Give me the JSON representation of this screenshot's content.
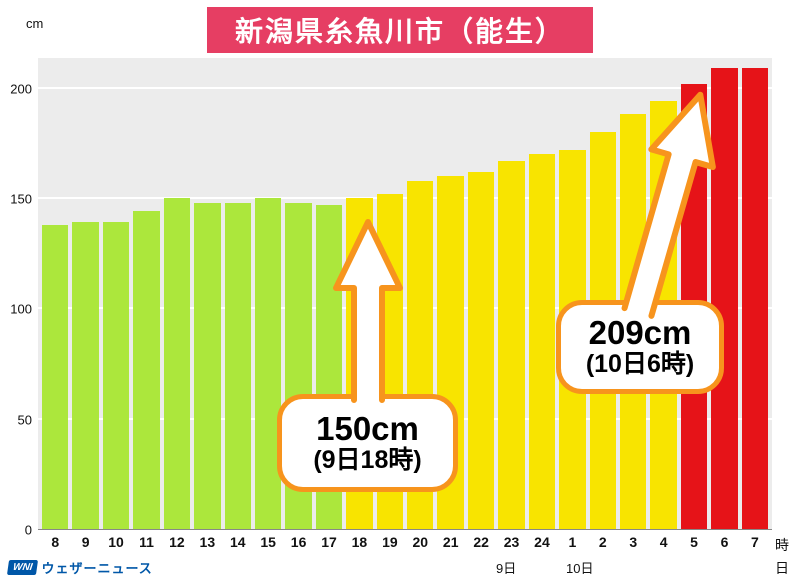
{
  "header": {
    "title": "新潟県糸魚川市（能生）"
  },
  "y_axis": {
    "unit": "cm"
  },
  "x_axis": {
    "hour_unit": "時",
    "day_unit": "日",
    "day_labels": [
      "9日",
      "10日"
    ]
  },
  "logo": {
    "mark": "WNI",
    "name": "ウェザーニュース"
  },
  "colors": {
    "title_bg": "#e63e63",
    "accent_orange": "#f7941d",
    "logo_blue": "#0057a8",
    "plot_bg": "#ececec"
  },
  "chart_data": {
    "type": "bar",
    "title": "新潟県糸魚川市（能生）",
    "ylabel": "cm",
    "xlabel": "時",
    "ylim": [
      0,
      214
    ],
    "yticks": [
      0,
      50,
      100,
      150,
      200
    ],
    "grid": true,
    "legend": false,
    "x": [
      "8",
      "9",
      "10",
      "11",
      "12",
      "13",
      "14",
      "15",
      "16",
      "17",
      "18",
      "19",
      "20",
      "21",
      "22",
      "23",
      "24",
      "1",
      "2",
      "3",
      "4",
      "5",
      "6",
      "7"
    ],
    "values": [
      138,
      139,
      139,
      144,
      150,
      148,
      148,
      150,
      148,
      147,
      150,
      152,
      158,
      160,
      162,
      167,
      170,
      172,
      180,
      188,
      194,
      202,
      209,
      209
    ],
    "bar_colors": [
      "green",
      "green",
      "green",
      "green",
      "green",
      "green",
      "green",
      "green",
      "green",
      "green",
      "yellow",
      "yellow",
      "yellow",
      "yellow",
      "yellow",
      "yellow",
      "yellow",
      "yellow",
      "yellow",
      "yellow",
      "yellow",
      "red",
      "red",
      "red"
    ],
    "color_map": {
      "green": "#ace73c",
      "yellow": "#f8e400",
      "red": "#e61318"
    },
    "annotations": [
      {
        "value": "150cm",
        "time": "(9日18時)",
        "points_to_hour": "18"
      },
      {
        "value": "209cm",
        "time": "(10日6時)",
        "points_to_hour": "6"
      }
    ]
  }
}
